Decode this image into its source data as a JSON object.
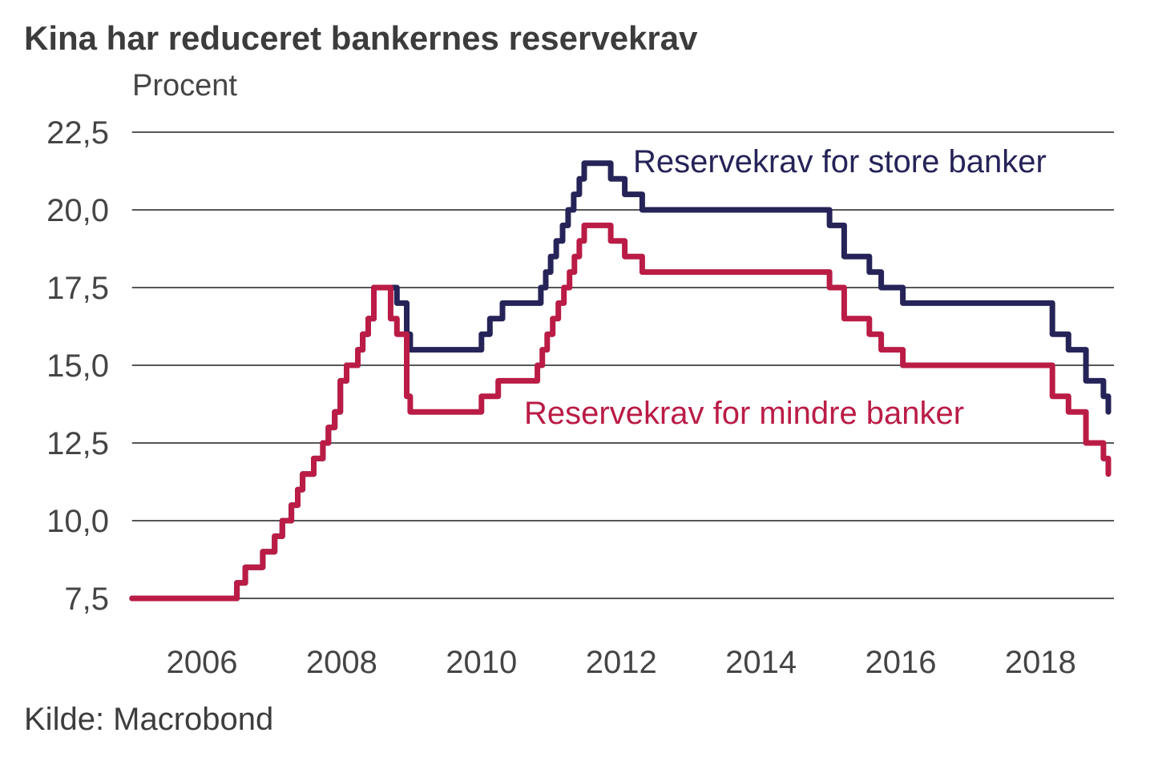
{
  "title": "Kina har reduceret bankernes reservekrav",
  "source": "Kilde: Macrobond",
  "chart_data": {
    "type": "line",
    "step": true,
    "title": "Kina har reduceret bankernes reservekrav",
    "ylabel": "Procent",
    "xlabel": "",
    "grid": "horizontal-only",
    "gridline_color": "#1f1f1f",
    "xlim": [
      2005.0,
      2019.05
    ],
    "ylim": [
      7.5,
      22.5
    ],
    "y_ticks": [
      {
        "value": 22.5,
        "label": "22,5"
      },
      {
        "value": 20.0,
        "label": "20,0"
      },
      {
        "value": 17.5,
        "label": "17,5"
      },
      {
        "value": 15.0,
        "label": "15,0"
      },
      {
        "value": 12.5,
        "label": "12,5"
      },
      {
        "value": 10.0,
        "label": "10,0"
      },
      {
        "value": 7.5,
        "label": "7,5"
      }
    ],
    "x_ticks": [
      {
        "value": 2006,
        "label": "2006"
      },
      {
        "value": 2008,
        "label": "2008"
      },
      {
        "value": 2010,
        "label": "2010"
      },
      {
        "value": 2012,
        "label": "2012"
      },
      {
        "value": 2014,
        "label": "2014"
      },
      {
        "value": 2016,
        "label": "2016"
      },
      {
        "value": 2018,
        "label": "2018"
      }
    ],
    "series": [
      {
        "name": "Reservekrav for store banker",
        "color": "#262358",
        "unit": "percent",
        "points": [
          [
            2005.0,
            7.5
          ],
          [
            2006.5,
            8.0
          ],
          [
            2006.62,
            8.5
          ],
          [
            2006.87,
            9.0
          ],
          [
            2007.04,
            9.5
          ],
          [
            2007.15,
            10.0
          ],
          [
            2007.28,
            10.5
          ],
          [
            2007.37,
            11.0
          ],
          [
            2007.44,
            11.5
          ],
          [
            2007.6,
            12.0
          ],
          [
            2007.73,
            12.5
          ],
          [
            2007.81,
            13.0
          ],
          [
            2007.9,
            13.5
          ],
          [
            2007.98,
            14.5
          ],
          [
            2008.07,
            15.0
          ],
          [
            2008.23,
            15.5
          ],
          [
            2008.3,
            16.0
          ],
          [
            2008.38,
            16.5
          ],
          [
            2008.46,
            17.5
          ],
          [
            2008.79,
            17.0
          ],
          [
            2008.93,
            16.0
          ],
          [
            2008.98,
            15.5
          ],
          [
            2010.0,
            16.0
          ],
          [
            2010.12,
            16.5
          ],
          [
            2010.3,
            17.0
          ],
          [
            2010.85,
            17.5
          ],
          [
            2010.92,
            18.0
          ],
          [
            2010.99,
            18.5
          ],
          [
            2011.07,
            19.0
          ],
          [
            2011.16,
            19.5
          ],
          [
            2011.24,
            20.0
          ],
          [
            2011.32,
            20.5
          ],
          [
            2011.4,
            21.0
          ],
          [
            2011.47,
            21.5
          ],
          [
            2011.85,
            21.0
          ],
          [
            2012.05,
            20.5
          ],
          [
            2012.3,
            20.0
          ],
          [
            2014.98,
            19.5
          ],
          [
            2015.19,
            18.5
          ],
          [
            2015.55,
            18.0
          ],
          [
            2015.72,
            17.5
          ],
          [
            2016.03,
            17.0
          ],
          [
            2018.17,
            16.0
          ],
          [
            2018.4,
            15.5
          ],
          [
            2018.65,
            14.5
          ],
          [
            2018.9,
            14.0
          ],
          [
            2018.97,
            13.5
          ]
        ]
      },
      {
        "name": "Reservekrav for mindre banker",
        "color": "#ba1c46",
        "unit": "percent",
        "points": [
          [
            2005.0,
            7.5
          ],
          [
            2006.5,
            8.0
          ],
          [
            2006.62,
            8.5
          ],
          [
            2006.87,
            9.0
          ],
          [
            2007.04,
            9.5
          ],
          [
            2007.15,
            10.0
          ],
          [
            2007.28,
            10.5
          ],
          [
            2007.37,
            11.0
          ],
          [
            2007.44,
            11.5
          ],
          [
            2007.6,
            12.0
          ],
          [
            2007.73,
            12.5
          ],
          [
            2007.81,
            13.0
          ],
          [
            2007.9,
            13.5
          ],
          [
            2007.98,
            14.5
          ],
          [
            2008.07,
            15.0
          ],
          [
            2008.23,
            15.5
          ],
          [
            2008.3,
            16.0
          ],
          [
            2008.38,
            16.5
          ],
          [
            2008.46,
            17.5
          ],
          [
            2008.7,
            16.5
          ],
          [
            2008.79,
            16.0
          ],
          [
            2008.93,
            14.0
          ],
          [
            2008.98,
            13.5
          ],
          [
            2010.0,
            14.0
          ],
          [
            2010.24,
            14.5
          ],
          [
            2010.8,
            15.0
          ],
          [
            2010.87,
            15.5
          ],
          [
            2010.94,
            16.0
          ],
          [
            2011.02,
            16.5
          ],
          [
            2011.1,
            17.0
          ],
          [
            2011.18,
            17.5
          ],
          [
            2011.26,
            18.0
          ],
          [
            2011.33,
            18.5
          ],
          [
            2011.4,
            19.0
          ],
          [
            2011.47,
            19.5
          ],
          [
            2011.85,
            19.0
          ],
          [
            2012.05,
            18.5
          ],
          [
            2012.3,
            18.0
          ],
          [
            2014.98,
            17.5
          ],
          [
            2015.19,
            16.5
          ],
          [
            2015.55,
            16.0
          ],
          [
            2015.72,
            15.5
          ],
          [
            2016.03,
            15.0
          ],
          [
            2018.17,
            14.0
          ],
          [
            2018.4,
            13.5
          ],
          [
            2018.65,
            12.5
          ],
          [
            2018.9,
            12.0
          ],
          [
            2018.97,
            11.5
          ]
        ]
      }
    ],
    "legend_position": "inline-annotations"
  }
}
